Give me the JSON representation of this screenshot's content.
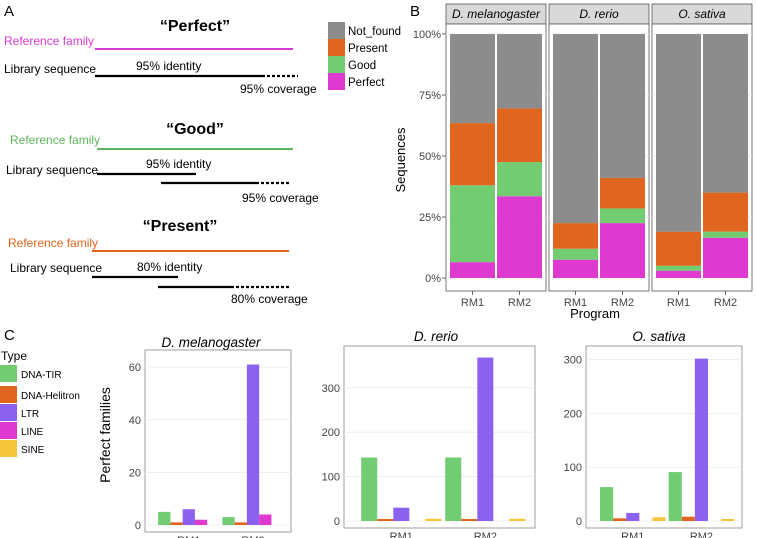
{
  "panel_labels": {
    "a": "A",
    "b": "B",
    "c": "C"
  },
  "panel_a": {
    "diagrams": [
      {
        "title": "“Perfect”",
        "reference_label": "Reference family",
        "color": "#d63ad3",
        "library_label": "Library sequence",
        "identity_label": "95% identity",
        "coverage_label": "95% coverage"
      },
      {
        "title": "“Good”",
        "reference_label": "Reference family",
        "color": "#5fb55a",
        "library_label": "Library sequence",
        "identity_label": "95% identity",
        "coverage_label": "95% coverage"
      },
      {
        "title": "“Present”",
        "reference_label": "Reference family",
        "color": "#e0631c",
        "library_label": "Library sequence",
        "identity_label": "80% identity",
        "coverage_label": "80% coverage"
      }
    ]
  },
  "colors": {
    "Not_found": "#8c8c8c",
    "Present": "#e0661f",
    "Good": "#72cc72",
    "Perfect": "#de3ad0",
    "DNA-TIR": "#72cc72",
    "DNA-Helitron": "#e0661f",
    "LTR": "#8b62f0",
    "LINE": "#de3ad0",
    "SINE": "#f5c53c",
    "strip_bg": "#d9d9d9",
    "grid": "#ebebeb"
  },
  "chart_data": [
    {
      "type": "bar",
      "stacked": true,
      "ylabel": "Sequences",
      "xlabel": "Program",
      "categories": [
        "RM1",
        "RM2"
      ],
      "yticks": [
        "0%",
        "25%",
        "50%",
        "75%",
        "100%"
      ],
      "ylim": [
        0,
        100
      ],
      "legend": [
        "Not_found",
        "Present",
        "Good",
        "Perfect"
      ],
      "facets": [
        {
          "name": "D. melanogaster",
          "series": [
            {
              "name": "Perfect",
              "values": [
                6.5,
                33.5
              ]
            },
            {
              "name": "Good",
              "values": [
                31.5,
                14
              ]
            },
            {
              "name": "Present",
              "values": [
                25.5,
                22
              ]
            },
            {
              "name": "Not_found",
              "values": [
                36.5,
                30.5
              ]
            }
          ]
        },
        {
          "name": "D. rerio",
          "series": [
            {
              "name": "Perfect",
              "values": [
                7.5,
                22.5
              ]
            },
            {
              "name": "Good",
              "values": [
                4.5,
                6
              ]
            },
            {
              "name": "Present",
              "values": [
                10.5,
                12.5
              ]
            },
            {
              "name": "Not_found",
              "values": [
                77.5,
                59
              ]
            }
          ]
        },
        {
          "name": "O. sativa",
          "series": [
            {
              "name": "Perfect",
              "values": [
                3,
                16.5
              ]
            },
            {
              "name": "Good",
              "values": [
                2,
                2.5
              ]
            },
            {
              "name": "Present",
              "values": [
                14,
                16
              ]
            },
            {
              "name": "Not_found",
              "values": [
                81,
                65
              ]
            }
          ]
        }
      ]
    },
    {
      "type": "bar",
      "grouped": true,
      "ylabel": "Perfect families",
      "legend_title": "Type",
      "legend": [
        "DNA-TIR",
        "DNA-Helitron",
        "LTR",
        "LINE",
        "SINE"
      ],
      "categories": [
        "RM1",
        "RM2"
      ],
      "panels": [
        {
          "name": "D. melanogaster",
          "ylim": [
            0,
            65
          ],
          "yticks": [
            0,
            20,
            40,
            60
          ],
          "series": [
            {
              "name": "DNA-TIR",
              "values": [
                5,
                3
              ]
            },
            {
              "name": "DNA-Helitron",
              "values": [
                1,
                1
              ]
            },
            {
              "name": "LTR",
              "values": [
                6,
                61
              ]
            },
            {
              "name": "LINE",
              "values": [
                2,
                4
              ]
            },
            {
              "name": "SINE",
              "values": [
                0,
                0
              ]
            }
          ]
        },
        {
          "name": "D. rerio",
          "ylim": [
            0,
            385
          ],
          "yticks": [
            0,
            100,
            200,
            300
          ],
          "series": [
            {
              "name": "DNA-TIR",
              "values": [
                143,
                143
              ]
            },
            {
              "name": "DNA-Helitron",
              "values": [
                2,
                2
              ]
            },
            {
              "name": "LTR",
              "values": [
                30,
                368
              ]
            },
            {
              "name": "LINE",
              "values": [
                0,
                0
              ]
            },
            {
              "name": "SINE",
              "values": [
                5,
                5
              ]
            }
          ]
        },
        {
          "name": "O. sativa",
          "ylim": [
            0,
            318
          ],
          "yticks": [
            0,
            100,
            200,
            300
          ],
          "series": [
            {
              "name": "DNA-TIR",
              "values": [
                63,
                91
              ]
            },
            {
              "name": "DNA-Helitron",
              "values": [
                5,
                8
              ]
            },
            {
              "name": "LTR",
              "values": [
                15,
                302
              ]
            },
            {
              "name": "LINE",
              "values": [
                0,
                0
              ]
            },
            {
              "name": "SINE",
              "values": [
                7,
                3
              ]
            }
          ]
        }
      ]
    }
  ]
}
